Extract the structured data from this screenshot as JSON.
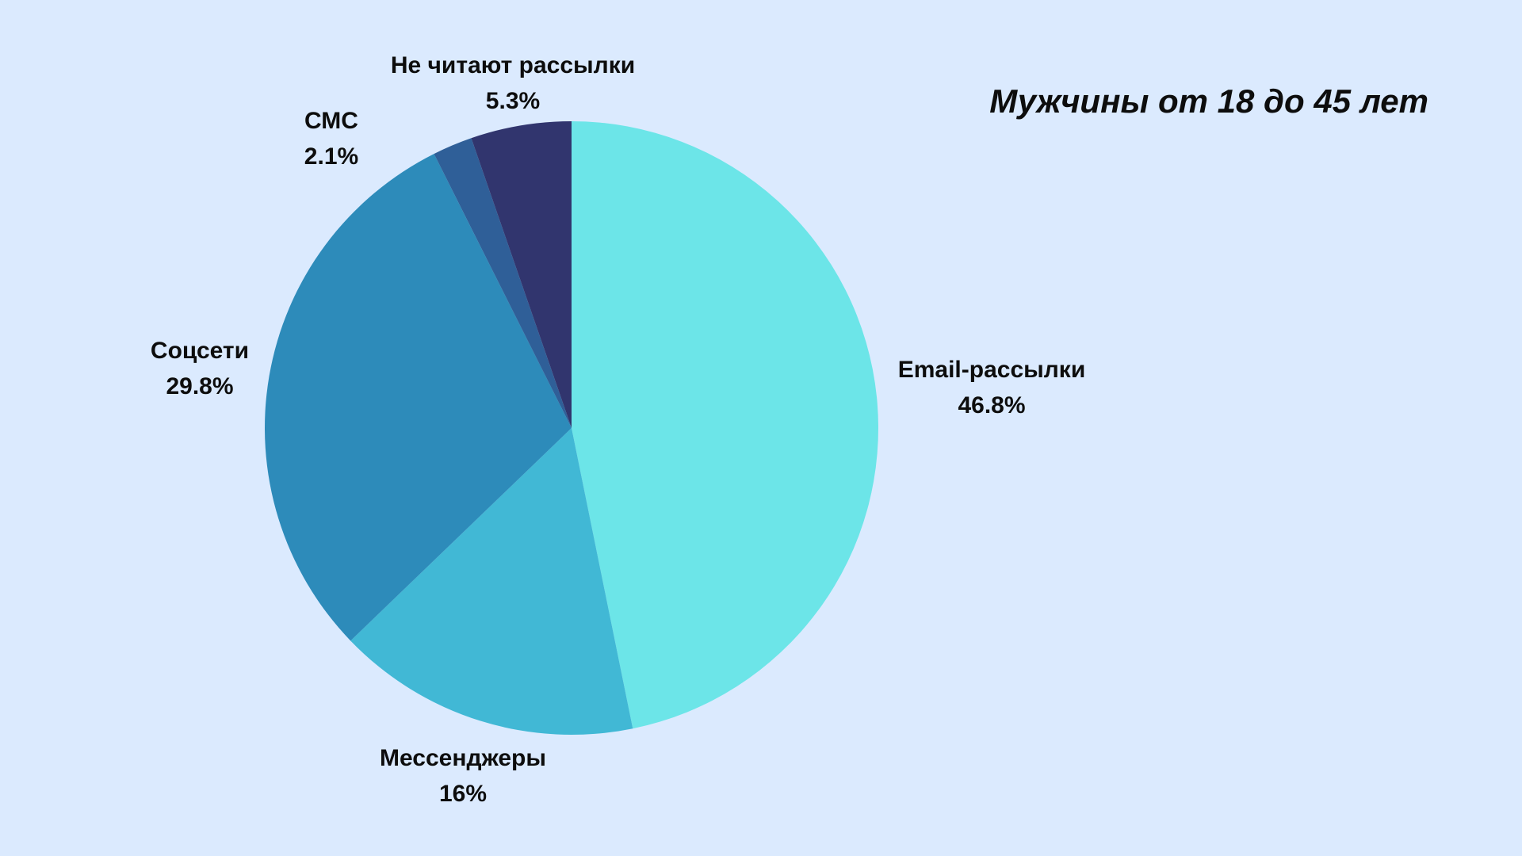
{
  "chart_data": {
    "type": "pie",
    "title": "Мужчины от 18 до 45 лет",
    "start_angle_deg": 0,
    "direction": "clockwise",
    "slices": [
      {
        "label": "Email-рассылки",
        "value": 46.8,
        "display": "46.8%",
        "color": "#6ce5e8"
      },
      {
        "label": "Мессенджеры",
        "value": 16,
        "display": "16%",
        "color": "#41b8d5"
      },
      {
        "label": "Соцсети",
        "value": 29.8,
        "display": "29.8%",
        "color": "#2d8bba"
      },
      {
        "label": "СМС",
        "value": 2.1,
        "display": "2.1%",
        "color": "#2f5f98"
      },
      {
        "label": "Не читают рассылки",
        "value": 5.3,
        "display": "5.3%",
        "color": "#31356e"
      }
    ]
  }
}
